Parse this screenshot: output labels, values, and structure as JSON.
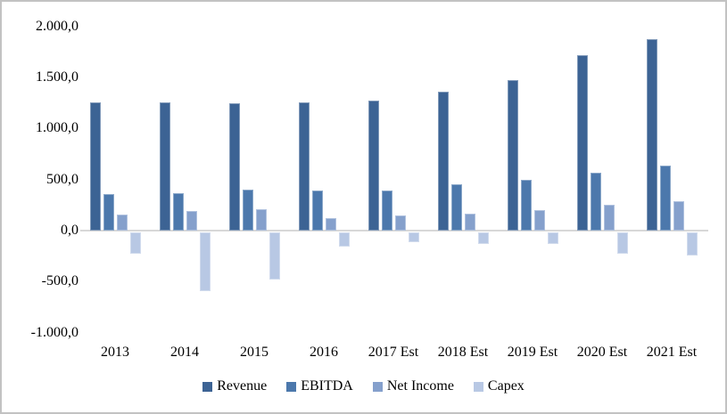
{
  "chart_data": {
    "type": "bar",
    "title": "",
    "xlabel": "",
    "ylabel": "",
    "categories": [
      "2013",
      "2014",
      "2015",
      "2016",
      "2017 Est",
      "2018 Est",
      "2019 Est",
      "2020 Est",
      "2021 Est"
    ],
    "series": [
      {
        "name": "Revenue",
        "color": "#3C6394",
        "values": [
          1255,
          1260,
          1250,
          1255,
          1270,
          1365,
          1475,
          1715,
          1880
        ]
      },
      {
        "name": "EBITDA",
        "color": "#4C78AC",
        "values": [
          355,
          370,
          400,
          395,
          395,
          450,
          495,
          570,
          640
        ]
      },
      {
        "name": "Net Income",
        "color": "#85A0CC",
        "values": [
          160,
          195,
          210,
          120,
          145,
          170,
          205,
          250,
          290
        ]
      },
      {
        "name": "Capex",
        "color": "#B8C8E4",
        "values": [
          -210,
          -580,
          -465,
          -140,
          -100,
          -115,
          -115,
          -210,
          -230
        ]
      }
    ],
    "ylim": [
      -1000,
      2000
    ],
    "y_ticks": [
      {
        "value": 2000,
        "label": "2.000,0"
      },
      {
        "value": 1500,
        "label": "1.500,0"
      },
      {
        "value": 1000,
        "label": "1.000,0"
      },
      {
        "value": 500,
        "label": "500,0"
      },
      {
        "value": 0,
        "label": "0,0"
      },
      {
        "value": -500,
        "label": "-500,0"
      },
      {
        "value": -1000,
        "label": "-1.000,0"
      }
    ],
    "number_format": "european decimal comma (1.000,0)",
    "gridlines": "none",
    "zero_axis_line_color": "#D8D8D8",
    "legend_position": "bottom",
    "legend_entries": [
      "Revenue",
      "EBITDA",
      "Net Income",
      "Capex"
    ],
    "frame_border_color": "#C2C2C2",
    "text_color": "#000000",
    "background_color": "#FFFFFF"
  }
}
